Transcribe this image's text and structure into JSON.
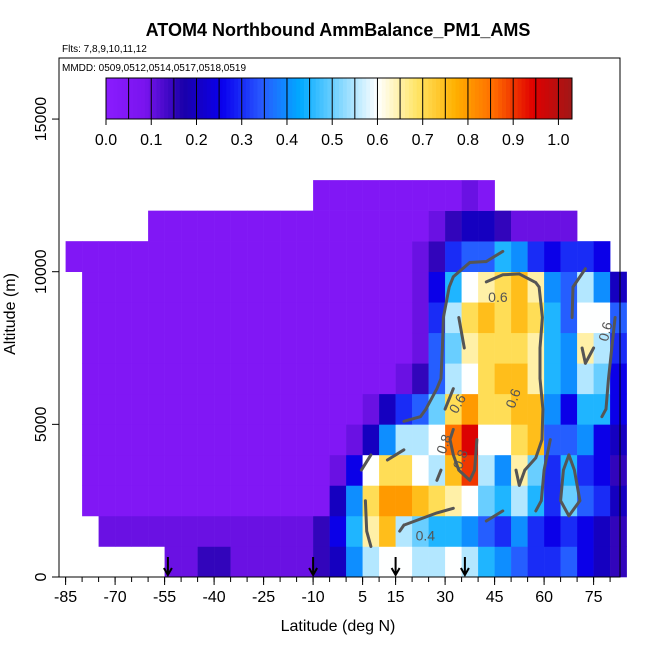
{
  "chart_data": {
    "type": "heatmap",
    "title": "ATOM4 Northbound AmmBalance_PM1_AMS",
    "subtitle_flights": "Flts: 7,8,9,10,11,12",
    "subtitle_dates": "MMDD: 0509,0512,0514,0517,0518,0519",
    "xlabel": "Latitude (deg N)",
    "ylabel": "Altitude (m)",
    "xlim": [
      -87,
      83
    ],
    "ylim": [
      0,
      17000
    ],
    "x_ticks": [
      "-85",
      "-70",
      "-55",
      "-40",
      "-25",
      "-10",
      "5",
      "15",
      "30",
      "45",
      "60",
      "75"
    ],
    "x_tick_values": [
      -85,
      -70,
      -55,
      -40,
      -25,
      -10,
      5,
      15,
      30,
      45,
      60,
      75
    ],
    "x_minor_step": 5,
    "y_ticks": [
      "0",
      "5000",
      "10000",
      "15000"
    ],
    "y_tick_values": [
      0,
      5000,
      10000,
      15000
    ],
    "colorbar": {
      "ticks": [
        "0.0",
        "0.1",
        "0.2",
        "0.3",
        "0.4",
        "0.5",
        "0.6",
        "0.7",
        "0.8",
        "0.9",
        "1.0"
      ],
      "tick_values": [
        0.0,
        0.1,
        0.2,
        0.3,
        0.4,
        0.5,
        0.6,
        0.7,
        0.8,
        0.9,
        1.0
      ],
      "range": [
        0.0,
        1.03
      ],
      "colors": [
        "#8a1cff",
        "#7a14ee",
        "#1a00aa",
        "#0a00ee",
        "#2858ff",
        "#00aaff",
        "#7fd6ff",
        "#ffffff",
        "#ffe566",
        "#ffb000",
        "#ff6a00",
        "#e00000",
        "#a01818"
      ]
    },
    "contour_levels": [
      0.4,
      0.6,
      0.8
    ],
    "contour_labels": [
      "0.4",
      "0.6",
      "0.8",
      "0.8",
      "0.6",
      "0.6",
      "0.6"
    ],
    "arrow_latitudes": [
      -54,
      -10,
      15,
      36
    ],
    "lat_bins": [
      -85,
      -80,
      -75,
      -70,
      -65,
      -60,
      -55,
      -50,
      -45,
      -40,
      -35,
      -30,
      -25,
      -20,
      -15,
      -10,
      -5,
      0,
      5,
      10,
      15,
      20,
      25,
      30,
      35,
      40,
      45,
      50,
      55,
      60,
      65,
      70,
      75,
      80
    ],
    "alt_bins": [
      0,
      1000,
      2000,
      3000,
      4000,
      5000,
      6000,
      7000,
      8000,
      9000,
      10000,
      11000,
      12000
    ],
    "values": [
      [
        null,
        null,
        null,
        null,
        null,
        null,
        0.1,
        0.1,
        0.15,
        0.15,
        0.1,
        0.1,
        0.1,
        0.1,
        0.1,
        0.15,
        0.2,
        0.4,
        0.55,
        0.6,
        0.6,
        0.55,
        0.55,
        0.6,
        0.55,
        0.45,
        0.4,
        0.35,
        0.3,
        0.3,
        0.35,
        0.25,
        0.2,
        0.15
      ],
      [
        null,
        null,
        0.1,
        0.1,
        0.1,
        0.1,
        0.1,
        0.1,
        0.1,
        0.1,
        0.1,
        0.1,
        0.1,
        0.1,
        0.1,
        0.15,
        0.25,
        0.45,
        0.65,
        0.75,
        0.55,
        0.5,
        0.45,
        0.45,
        0.4,
        0.35,
        0.3,
        0.4,
        0.3,
        0.25,
        0.3,
        0.25,
        0.2,
        0.15
      ],
      [
        null,
        0.05,
        0.05,
        0.05,
        0.05,
        0.05,
        0.05,
        0.05,
        0.05,
        0.05,
        0.05,
        0.05,
        0.05,
        0.05,
        0.05,
        0.05,
        0.2,
        0.4,
        0.7,
        0.8,
        0.8,
        0.75,
        0.7,
        0.65,
        0.6,
        0.5,
        0.45,
        0.55,
        0.45,
        0.3,
        0.5,
        0.35,
        0.3,
        0.2
      ],
      [
        null,
        0.05,
        0.05,
        0.05,
        0.05,
        0.05,
        0.05,
        0.05,
        0.05,
        0.05,
        0.05,
        0.05,
        0.05,
        0.05,
        0.05,
        0.05,
        0.1,
        0.25,
        0.6,
        0.7,
        0.7,
        0.6,
        0.55,
        0.75,
        0.9,
        0.55,
        0.4,
        0.65,
        0.5,
        0.3,
        0.45,
        0.3,
        0.25,
        0.15
      ],
      [
        null,
        0.05,
        0.05,
        0.05,
        0.05,
        0.05,
        0.05,
        0.05,
        0.05,
        0.05,
        0.05,
        0.05,
        0.05,
        0.05,
        0.05,
        0.05,
        0.05,
        0.1,
        0.2,
        0.4,
        0.55,
        0.55,
        0.6,
        0.85,
        0.95,
        0.6,
        0.6,
        0.7,
        0.75,
        0.35,
        0.35,
        0.4,
        0.25,
        0.2
      ],
      [
        null,
        0.05,
        0.05,
        0.05,
        0.05,
        0.05,
        0.05,
        0.05,
        0.05,
        0.05,
        0.05,
        0.05,
        0.05,
        0.05,
        0.05,
        0.05,
        0.05,
        0.05,
        0.1,
        0.2,
        0.3,
        0.35,
        0.5,
        0.7,
        0.8,
        0.7,
        0.7,
        0.75,
        0.75,
        0.4,
        0.25,
        0.45,
        0.45,
        0.25
      ],
      [
        null,
        0.05,
        0.05,
        0.05,
        0.05,
        0.05,
        0.05,
        0.05,
        0.05,
        0.05,
        0.05,
        0.05,
        0.05,
        0.05,
        0.05,
        0.05,
        0.05,
        0.05,
        0.05,
        0.05,
        0.1,
        0.15,
        0.35,
        0.55,
        0.6,
        0.7,
        0.75,
        0.75,
        0.65,
        0.45,
        0.4,
        0.55,
        0.5,
        0.25
      ],
      [
        null,
        0.05,
        0.05,
        0.05,
        0.05,
        0.05,
        0.05,
        0.05,
        0.05,
        0.05,
        0.05,
        0.05,
        0.05,
        0.05,
        0.05,
        0.05,
        0.05,
        0.05,
        0.05,
        0.05,
        0.05,
        0.1,
        0.35,
        0.5,
        0.65,
        0.7,
        0.7,
        0.7,
        0.65,
        0.45,
        0.4,
        0.65,
        0.55,
        0.3
      ],
      [
        null,
        0.05,
        0.05,
        0.05,
        0.05,
        0.05,
        0.05,
        0.05,
        0.05,
        0.05,
        0.05,
        0.05,
        0.05,
        0.05,
        0.05,
        0.05,
        0.05,
        0.05,
        0.05,
        0.05,
        0.05,
        0.1,
        0.3,
        0.55,
        0.7,
        0.75,
        0.7,
        0.75,
        0.7,
        0.45,
        0.35,
        0.6,
        0.6,
        0.35
      ],
      [
        null,
        0.05,
        0.05,
        0.05,
        0.05,
        0.05,
        0.05,
        0.05,
        0.05,
        0.05,
        0.05,
        0.05,
        0.05,
        0.05,
        0.05,
        0.05,
        0.05,
        0.05,
        0.05,
        0.05,
        0.05,
        0.1,
        0.25,
        0.45,
        0.6,
        0.65,
        0.7,
        0.75,
        0.65,
        0.4,
        0.35,
        0.55,
        0.4,
        0.2
      ],
      [
        0.05,
        0.05,
        0.05,
        0.05,
        0.05,
        0.05,
        0.05,
        0.05,
        0.05,
        0.05,
        0.05,
        0.05,
        0.05,
        0.05,
        0.05,
        0.05,
        0.05,
        0.05,
        0.05,
        0.05,
        0.05,
        0.1,
        0.15,
        0.3,
        0.35,
        0.35,
        0.45,
        0.4,
        0.3,
        0.25,
        0.3,
        0.3,
        0.25,
        null
      ],
      [
        null,
        null,
        null,
        null,
        null,
        0.05,
        0.05,
        0.05,
        0.05,
        0.05,
        0.05,
        0.05,
        0.05,
        0.05,
        0.05,
        0.05,
        0.05,
        0.05,
        0.05,
        0.05,
        0.05,
        0.05,
        0.1,
        0.15,
        0.2,
        0.2,
        0.15,
        0.1,
        0.1,
        0.1,
        0.1,
        null,
        null,
        null
      ],
      [
        null,
        null,
        null,
        null,
        null,
        null,
        null,
        null,
        null,
        null,
        null,
        null,
        null,
        null,
        null,
        0.05,
        0.05,
        0.05,
        0.05,
        0.05,
        0.05,
        0.05,
        0.05,
        0.05,
        0.1,
        0.05,
        null,
        null,
        null,
        null,
        null,
        null,
        null,
        null
      ]
    ]
  }
}
